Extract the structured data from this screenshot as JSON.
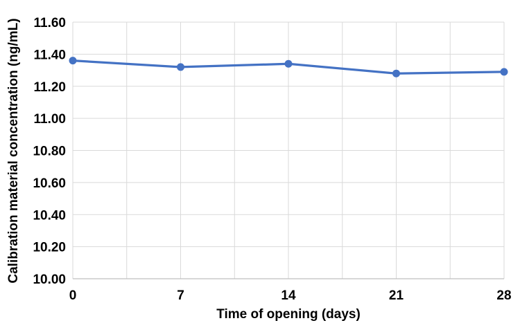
{
  "chart_data": {
    "type": "line",
    "title": "",
    "xlabel": "Time of opening (days)",
    "ylabel": "Calibration material concentration (ng/mL)",
    "x": [
      0,
      7,
      14,
      21,
      28
    ],
    "series": [
      {
        "name": "Calibration material concentration (ng/mL)",
        "values": [
          11.36,
          11.32,
          11.34,
          11.28,
          11.29
        ]
      }
    ],
    "xlim": [
      0,
      28
    ],
    "ylim": [
      10.0,
      11.6
    ],
    "x_label_ticks": [
      0,
      7,
      14,
      21,
      28
    ],
    "x_grid_step": 3.5,
    "y_tick_step": 0.2,
    "y_tick_decimals": 2,
    "grid": true,
    "legend_position": "none",
    "colors": {
      "series": "#4472C4",
      "grid": "#D9D9D9",
      "axis_line": "#BFBFBF",
      "text": "#000000",
      "background": "#FFFFFF"
    },
    "marker": {
      "shape": "circle",
      "radius": 5.5
    },
    "line_width": 3.25
  }
}
